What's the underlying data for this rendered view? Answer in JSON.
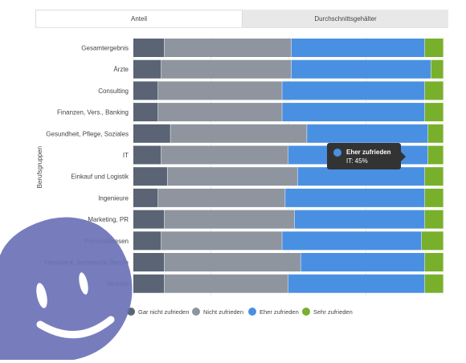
{
  "tabs": [
    {
      "label": "Anteil",
      "active": true
    },
    {
      "label": "Durchschnittsgehälter",
      "active": false
    }
  ],
  "tooltip": {
    "series": "Eher zufrieden",
    "text": "IT: 45%",
    "color": "#4a90e2"
  },
  "chart_data": {
    "type": "bar",
    "orientation": "horizontal",
    "stacked": true,
    "stack_mode": "percent",
    "xlim": [
      0,
      100
    ],
    "ylabel": "Berufsgruppen",
    "legend_position": "bottom",
    "categories": [
      "Gesamtergebnis",
      "Ärzte",
      "Consulting",
      "Finanzen, Vers., Banking",
      "Gesundheit, Pflege, Soziales",
      "IT",
      "Einkauf und Logistik",
      "Ingenieure",
      "Marketing, PR",
      "Personalwesen",
      "Handwerk, technische Berufe",
      "Vertrieb"
    ],
    "series": [
      {
        "name": "Gar nicht zufrieden",
        "color": "#5a6475",
        "values": [
          10,
          9,
          8,
          8,
          12,
          9,
          11,
          8,
          10,
          9,
          10,
          10
        ]
      },
      {
        "name": "Nicht zufrieden",
        "color": "#8e959f",
        "values": [
          41,
          42,
          40,
          40,
          44,
          41,
          42,
          41,
          42,
          39,
          44,
          40
        ]
      },
      {
        "name": "Eher zufrieden",
        "color": "#4a90e2",
        "values": [
          43,
          45,
          46,
          46,
          39,
          45,
          41,
          45,
          42,
          45,
          40,
          44
        ]
      },
      {
        "name": "Sehr zufrieden",
        "color": "#78b02b",
        "values": [
          6,
          4,
          6,
          6,
          5,
          5,
          6,
          6,
          6,
          7,
          6,
          6
        ]
      }
    ]
  }
}
